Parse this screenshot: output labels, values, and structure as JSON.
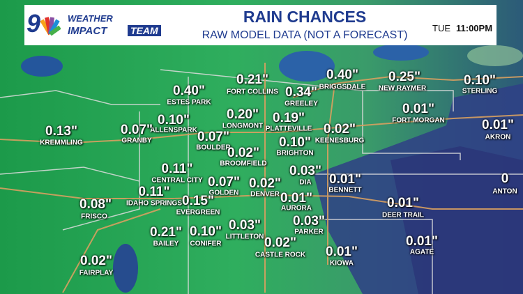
{
  "header": {
    "logo_number": "9",
    "brand_top": "WEATHER",
    "brand_bottom_left": "IMPACT",
    "brand_bottom_right": "TEAM",
    "title": "RAIN CHANCES",
    "subtitle": "RAW MODEL DATA (NOT A FORECAST)",
    "day": "TUE",
    "time": "11:00PM"
  },
  "locations": [
    {
      "name": "FORT COLLINS",
      "value": "0.21\""
    },
    {
      "name": "BRIGGSDALE",
      "value": "0.40\""
    },
    {
      "name": "NEW RAYMER",
      "value": "0.25\""
    },
    {
      "name": "STERLING",
      "value": "0.10\""
    },
    {
      "name": "ESTES PARK",
      "value": "0.40\""
    },
    {
      "name": "GREELEY",
      "value": "0.34\""
    },
    {
      "name": "LONGMONT",
      "value": "0.20\""
    },
    {
      "name": "PLATTEVILLE",
      "value": "0.19\""
    },
    {
      "name": "FORT MORGAN",
      "value": "0.01\""
    },
    {
      "name": "ALLENSPARK",
      "value": "0.10\""
    },
    {
      "name": "KREMMLING",
      "value": "0.13\""
    },
    {
      "name": "GRANBY",
      "value": "0.07\""
    },
    {
      "name": "BOULDER",
      "value": "0.07\""
    },
    {
      "name": "KEENESBURG",
      "value": "0.02\""
    },
    {
      "name": "AKRON",
      "value": "0.01\""
    },
    {
      "name": "BRIGHTON",
      "value": "0.10\""
    },
    {
      "name": "BROOMFIELD",
      "value": "0.02\""
    },
    {
      "name": "CENTRAL CITY",
      "value": "0.11\""
    },
    {
      "name": "DIA",
      "value": "0.03\""
    },
    {
      "name": "BENNETT",
      "value": "0.01\""
    },
    {
      "name": "ANTON",
      "value": "0"
    },
    {
      "name": "GOLDEN",
      "value": "0.07\""
    },
    {
      "name": "DENVER",
      "value": "0.02\""
    },
    {
      "name": "IDAHO SPRINGS",
      "value": "0.11\""
    },
    {
      "name": "AURORA",
      "value": "0.01\""
    },
    {
      "name": "FRISCO",
      "value": "0.08\""
    },
    {
      "name": "EVERGREEN",
      "value": "0.15\""
    },
    {
      "name": "DEER TRAIL",
      "value": "0.01\""
    },
    {
      "name": "PARKER",
      "value": "0.03\""
    },
    {
      "name": "BAILEY",
      "value": "0.21\""
    },
    {
      "name": "CONIFER",
      "value": "0.10\""
    },
    {
      "name": "LITTLETON",
      "value": "0.03\""
    },
    {
      "name": "AGATE",
      "value": "0.01\""
    },
    {
      "name": "CASTLE ROCK",
      "value": "0.02\""
    },
    {
      "name": "KIOWA",
      "value": "0.01\""
    },
    {
      "name": "FAIRPLAY",
      "value": "0.02\""
    }
  ]
}
